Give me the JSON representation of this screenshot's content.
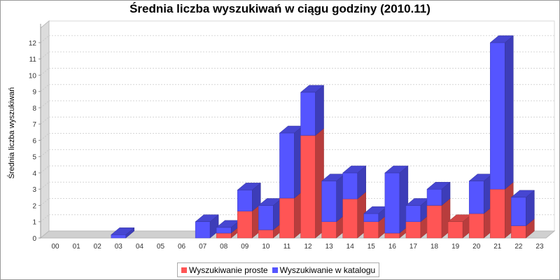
{
  "chart_data": {
    "type": "bar",
    "stacked": true,
    "style": "3d",
    "title": "Średnia liczba wyszukiwań w ciągu godziny (2010.11)",
    "xlabel": "",
    "ylabel": "Średnia liczba wyszukiwań",
    "ylim": [
      0,
      12.9
    ],
    "yticks": [
      0,
      1,
      2,
      3,
      4,
      5,
      6,
      7,
      8,
      9,
      10,
      11,
      12
    ],
    "grid": true,
    "legend_position": "bottom",
    "categories": [
      "00",
      "01",
      "02",
      "03",
      "04",
      "05",
      "06",
      "07",
      "08",
      "09",
      "10",
      "11",
      "12",
      "13",
      "14",
      "15",
      "16",
      "17",
      "18",
      "19",
      "20",
      "21",
      "22",
      "23"
    ],
    "series": [
      {
        "name": "Wyszukiwanie proste",
        "color": "#ff5555",
        "values": [
          0,
          0,
          0,
          0,
          0,
          0,
          0,
          0,
          0.3,
          1.65,
          0.5,
          2.45,
          6.3,
          1.0,
          2.4,
          1.0,
          0.3,
          1.0,
          2.0,
          1.0,
          1.5,
          3.0,
          0.75,
          0
        ]
      },
      {
        "name": "Wyszukiwanie w katalogu",
        "color": "#5555ff",
        "values": [
          0,
          0,
          0,
          0.2,
          0,
          0,
          0,
          1.0,
          0.35,
          1.3,
          1.5,
          4.0,
          2.65,
          2.5,
          1.6,
          0.5,
          3.7,
          1.0,
          1.0,
          0,
          2.0,
          9.0,
          1.75,
          0
        ]
      }
    ]
  }
}
